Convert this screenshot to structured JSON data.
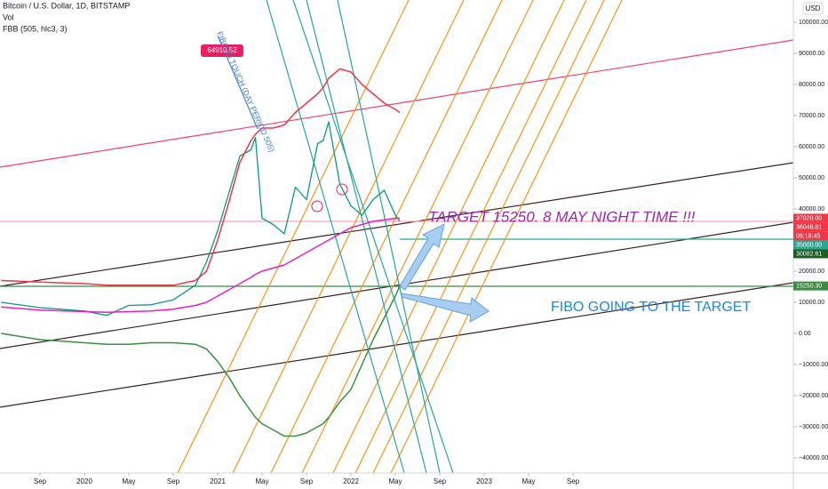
{
  "chart_data": {
    "type": "line",
    "title": "Bitcoin / U.S. Dollar, 1D, BITSTAMP",
    "indicators": [
      "Vol",
      "FBB (505, hlc3, 3)"
    ],
    "currency": "USD",
    "x": [
      -7.5,
      -4,
      0,
      2,
      4,
      6,
      8,
      10,
      11,
      12,
      13,
      14,
      15,
      15.4,
      16,
      17,
      18,
      19,
      20,
      21,
      21.5,
      22,
      23,
      24,
      25,
      26,
      27,
      28,
      28.4
    ],
    "series": [
      {
        "color": "#089981",
        "width": 1.3,
        "values": [
          10000,
          8300,
          7200,
          5800,
          9000,
          9200,
          10800,
          15500,
          23000,
          33000,
          45000,
          57000,
          59000,
          63000,
          37000,
          35000,
          32000,
          47000,
          43000,
          61000,
          62000,
          68000,
          48000,
          41000,
          38000,
          43000,
          46000,
          38000,
          36046.81
        ]
      },
      {
        "color": "#f23645",
        "width": 1.5,
        "values": [
          17000,
          16500,
          16000,
          15500,
          15500,
          15500,
          15500,
          17000,
          20000,
          30000,
          42000,
          55000,
          62000,
          64000,
          66000,
          66000,
          67000,
          71000,
          74000,
          77000,
          79000,
          82000,
          85000,
          84000,
          80000,
          77000,
          74000,
          72000,
          71000
        ]
      },
      {
        "color": "#e91ec7",
        "width": 1.5,
        "values": [
          8500,
          7500,
          7000,
          6800,
          7000,
          7200,
          7800,
          9000,
          10000,
          12000,
          14000,
          16000,
          18000,
          19000,
          20000,
          21000,
          22000,
          24000,
          26000,
          28000,
          29000,
          30000,
          32000,
          34000,
          35000,
          36000,
          36500,
          37000,
          37000
        ]
      },
      {
        "color": "#388e3c",
        "width": 1.5,
        "values": [
          0,
          -2000,
          -3000,
          -3500,
          -3500,
          -3000,
          -3000,
          -3500,
          -5000,
          -9000,
          -14000,
          -20000,
          -25000,
          -27000,
          -29000,
          -31000,
          -33000,
          -33000,
          -32000,
          -30000,
          -29000,
          -27000,
          -22000,
          -18000,
          -10000,
          -2000,
          5000,
          12000,
          15250
        ]
      }
    ],
    "xlim": [
      -7.6,
      63.84
    ],
    "xticks": [
      {
        "value": -4,
        "label": "Sep"
      },
      {
        "value": 0,
        "label": "2020"
      },
      {
        "value": 4,
        "label": "May"
      },
      {
        "value": 8,
        "label": "Sep"
      },
      {
        "value": 12,
        "label": "2021"
      },
      {
        "value": 16,
        "label": "May"
      },
      {
        "value": 20,
        "label": "Sep"
      },
      {
        "value": 24,
        "label": "2022"
      },
      {
        "value": 28,
        "label": "May"
      },
      {
        "value": 32,
        "label": "Sep"
      },
      {
        "value": 36,
        "label": "2023"
      },
      {
        "value": 40,
        "label": "May"
      },
      {
        "value": 44,
        "label": "Sep"
      }
    ],
    "ylim": [
      -44857,
      107143
    ],
    "yticks": [
      {
        "value": 100000,
        "label": "100000.00"
      },
      {
        "value": 90000,
        "label": "90000.00"
      },
      {
        "value": 80000,
        "label": "80000.00"
      },
      {
        "value": 70000,
        "label": "70000.00"
      },
      {
        "value": 60000,
        "label": "60000.00"
      },
      {
        "value": 50000,
        "label": "50000.00"
      },
      {
        "value": 40000,
        "label": "40000.00"
      },
      {
        "value": 30000,
        "label": "30000.00"
      },
      {
        "value": 20000,
        "label": "20000.00"
      },
      {
        "value": 10000,
        "label": "10000.00"
      },
      {
        "value": 0,
        "label": "0.00"
      },
      {
        "value": -10000,
        "label": "−10000.00"
      },
      {
        "value": -20000,
        "label": "−20000.00"
      },
      {
        "value": -30000,
        "label": "−30000.00"
      },
      {
        "value": -40000,
        "label": "−40000.00"
      }
    ],
    "price_labels": [
      {
        "value": 37020,
        "label": "37020.00",
        "color": "#f23645"
      },
      {
        "value": 36046.81,
        "label": "36046.81",
        "color": "#f23645"
      },
      {
        "value": 35000,
        "label": "35000.00",
        "color": "#22ab94"
      },
      {
        "value": 30082.61,
        "label": "30082.61",
        "color": "#1b5e20"
      },
      {
        "value": 15250.3,
        "label": "15250.30",
        "color": "#388e3c"
      }
    ],
    "countdown": "06:18:45",
    "peak_label": 64910.52,
    "annotations": [
      "TARGET 15250. 8 MAY NIGHT TIME !!!",
      "FIBO GOING TO THE TARGET",
      "FIBO CI TOUCH (DAY PERIOD 505)"
    ]
  }
}
